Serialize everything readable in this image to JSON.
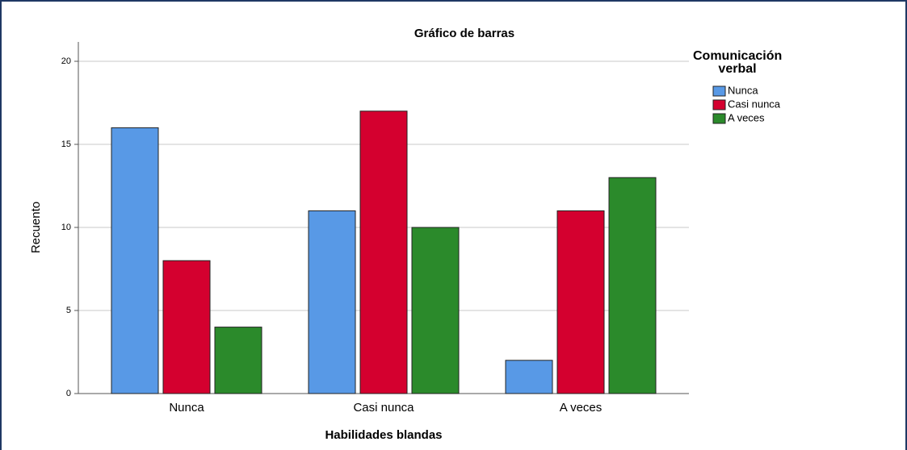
{
  "chart_data": {
    "type": "bar",
    "title": "Gráfico de barras",
    "x_label": "Habilidades blandas",
    "y_label": "Recuento",
    "legend_title": "Comunicación verbal",
    "legend_position": "right",
    "categories": [
      "Nunca",
      "Casi nunca",
      "A veces"
    ],
    "series": [
      {
        "name": "Nunca",
        "color": "#5899e6",
        "values": [
          16,
          11,
          2
        ]
      },
      {
        "name": "Casi nunca",
        "color": "#d4002f",
        "values": [
          8,
          17,
          11
        ]
      },
      {
        "name": "A veces",
        "color": "#2b8a2b",
        "values": [
          4,
          10,
          13
        ]
      }
    ],
    "ylim": [
      0,
      20
    ],
    "yticks": [
      0,
      5,
      10,
      15,
      20
    ],
    "grid": true
  }
}
